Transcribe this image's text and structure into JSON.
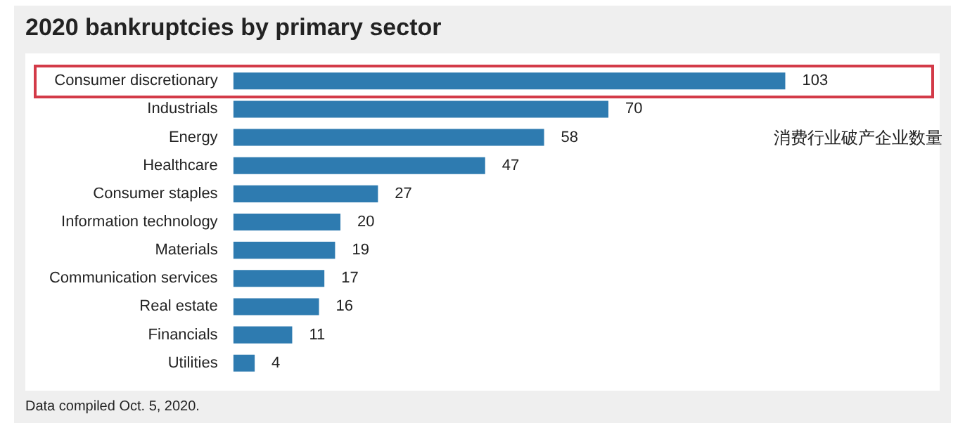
{
  "chart_data": {
    "type": "bar",
    "orientation": "horizontal",
    "title": "2020 bankruptcies by primary sector",
    "categories": [
      "Consumer discretionary",
      "Industrials",
      "Energy",
      "Healthcare",
      "Consumer staples",
      "Information technology",
      "Materials",
      "Communication services",
      "Real estate",
      "Financials",
      "Utilities"
    ],
    "values": [
      103,
      70,
      58,
      47,
      27,
      20,
      19,
      17,
      16,
      11,
      4
    ],
    "color": "#2e7bb0",
    "data_labels": true,
    "legend": false,
    "tick_labels": "y",
    "annotations": [
      "消费行业破产企业数量",
      "Data compiled Oct. 5, 2020."
    ]
  }
}
